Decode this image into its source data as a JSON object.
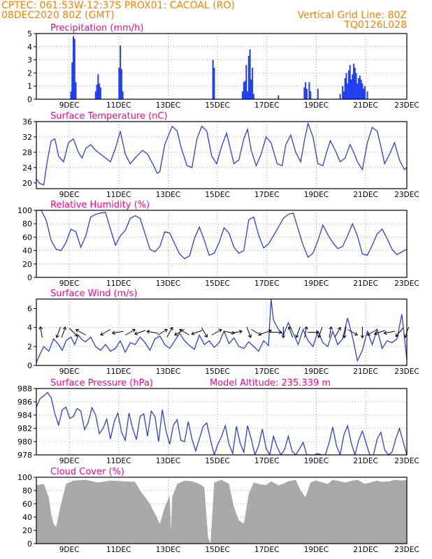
{
  "header": {
    "left_line1": "CPTEC:   061:53W-12:37S   PROX01: CACOAL (RO)",
    "left_line2": "08DEC2020 80Z (GMT)",
    "right_line2": "Vertical Grid Line: 80Z",
    "right_line3": "TQ0126L028",
    "color": "#ff7f00"
  },
  "colors": {
    "title": "#ff0090",
    "line": "#2a3fdc",
    "bar": "#1f3ff0",
    "cloud": "#a9a9a9",
    "arrow": "#000000"
  },
  "x_tick_labels": [
    "9DEC",
    "11DEC",
    "13DEC",
    "15DEC",
    "17DEC",
    "19DEC",
    "21DEC",
    "23DEC"
  ],
  "model_altitude": "Model Altitude: 235.339 m",
  "chart_data": [
    {
      "id": "precip",
      "type": "bar",
      "title": "Precipitation (mm/h)",
      "ylim": [
        0,
        5
      ],
      "yticks": [
        "0",
        "1",
        "2",
        "3",
        "4",
        "5"
      ],
      "x_range_days": [
        8.0,
        23.0
      ],
      "x": [
        9.4,
        9.45,
        9.5,
        9.55,
        9.6,
        10.4,
        10.45,
        10.5,
        10.55,
        10.6,
        11.35,
        11.4,
        11.45,
        11.5,
        15.15,
        15.2,
        16.35,
        16.4,
        16.45,
        16.5,
        16.55,
        16.6,
        16.65,
        16.7,
        16.75,
        16.8,
        17.8,
        18.85,
        18.9,
        18.95,
        19.05,
        19.1,
        19.4,
        20.3,
        20.4,
        20.45,
        20.5,
        20.55,
        20.6,
        20.65,
        20.7,
        20.75,
        20.8,
        20.85,
        20.9,
        20.95,
        21.0,
        21.05,
        21.1,
        21.15,
        21.2,
        21.25,
        21.3,
        21.4
      ],
      "values": [
        0.6,
        2.8,
        4.8,
        4.6,
        1.3,
        0.6,
        1.1,
        1.9,
        1.2,
        0.9,
        2.4,
        4.1,
        2.3,
        0.6,
        3.0,
        2.4,
        0.6,
        1.3,
        1.4,
        2.6,
        0.6,
        3.3,
        3.8,
        1.5,
        2.4,
        0.4,
        0.3,
        0.9,
        1.3,
        0.8,
        1.3,
        0.6,
        0.8,
        0.4,
        1.0,
        0.6,
        1.6,
        2.0,
        1.2,
        2.2,
        2.6,
        1.5,
        1.9,
        2.7,
        2.4,
        2.0,
        1.2,
        1.6,
        1.8,
        1.5,
        1.2,
        0.8,
        1.0,
        0.6
      ]
    },
    {
      "id": "temp",
      "type": "line",
      "title": "Surface Temperature (nC)",
      "ylim": [
        18.5,
        36
      ],
      "yticks": [
        "20",
        "24",
        "28",
        "32",
        "36"
      ],
      "x_range_days": [
        8.0,
        23.0
      ],
      "x": [
        8.0,
        8.15,
        8.3,
        8.45,
        8.6,
        8.75,
        8.9,
        9.1,
        9.3,
        9.5,
        9.7,
        9.85,
        10.0,
        10.2,
        10.4,
        10.6,
        10.8,
        11.0,
        11.2,
        11.4,
        11.6,
        11.8,
        12.0,
        12.3,
        12.5,
        12.75,
        12.9,
        13.0,
        13.2,
        13.5,
        13.7,
        13.85,
        14.1,
        14.3,
        14.5,
        14.7,
        14.9,
        15.1,
        15.3,
        15.5,
        15.7,
        15.85,
        16.0,
        16.2,
        16.4,
        16.55,
        16.7,
        16.9,
        17.1,
        17.3,
        17.5,
        17.75,
        17.95,
        18.1,
        18.3,
        18.5,
        18.7,
        18.85,
        19.0,
        19.2,
        19.4,
        19.6,
        19.75,
        19.9,
        20.1,
        20.3,
        20.5,
        20.7,
        20.85,
        21.0,
        21.2,
        21.4,
        21.6,
        21.8,
        21.95,
        22.1,
        22.3,
        22.5,
        22.7,
        22.9,
        23.0
      ],
      "values": [
        21.0,
        19.8,
        19.5,
        26.0,
        31.0,
        31.5,
        27.0,
        25.5,
        30.5,
        31.5,
        28.0,
        26.5,
        29.0,
        30.0,
        28.5,
        27.5,
        26.5,
        25.5,
        29.0,
        33.5,
        27.5,
        25.0,
        26.5,
        28.5,
        27.5,
        24.5,
        22.5,
        23.0,
        30.0,
        34.8,
        33.5,
        29.5,
        24.5,
        24.0,
        31.5,
        34.8,
        33.5,
        27.0,
        25.0,
        29.5,
        33.0,
        29.0,
        25.0,
        26.0,
        31.5,
        34.0,
        28.5,
        24.5,
        27.5,
        32.0,
        30.5,
        25.0,
        24.5,
        30.0,
        32.5,
        28.0,
        25.5,
        31.0,
        35.5,
        32.0,
        25.0,
        24.5,
        28.0,
        31.0,
        28.5,
        25.5,
        26.5,
        30.0,
        28.0,
        25.5,
        23.5,
        30.5,
        34.5,
        33.5,
        29.5,
        25.0,
        27.5,
        30.5,
        26.0,
        23.5,
        24.0
      ]
    },
    {
      "id": "rh",
      "type": "line",
      "title": "Relative Humidity (%)",
      "ylim": [
        0,
        100
      ],
      "yticks": [
        "0",
        "20",
        "40",
        "60",
        "80",
        "100"
      ],
      "x_range_days": [
        8.0,
        23.0
      ],
      "x": [
        8.0,
        8.2,
        8.4,
        8.6,
        8.8,
        9.0,
        9.2,
        9.4,
        9.6,
        9.8,
        10.0,
        10.2,
        10.4,
        10.6,
        10.8,
        11.0,
        11.2,
        11.4,
        11.6,
        11.8,
        12.0,
        12.2,
        12.4,
        12.6,
        12.8,
        13.0,
        13.2,
        13.4,
        13.6,
        13.8,
        14.0,
        14.2,
        14.4,
        14.6,
        14.8,
        15.0,
        15.2,
        15.4,
        15.6,
        15.8,
        16.0,
        16.2,
        16.4,
        16.6,
        16.8,
        17.0,
        17.2,
        17.4,
        17.6,
        17.8,
        18.0,
        18.2,
        18.4,
        18.6,
        18.8,
        19.0,
        19.2,
        19.4,
        19.6,
        19.8,
        20.0,
        20.2,
        20.4,
        20.6,
        20.8,
        21.0,
        21.2,
        21.4,
        21.6,
        21.8,
        22.0,
        22.2,
        22.4,
        22.6,
        22.8,
        23.0
      ],
      "values": [
        100,
        100,
        85,
        55,
        42,
        40,
        52,
        72,
        68,
        45,
        62,
        90,
        94,
        96,
        97,
        72,
        48,
        62,
        70,
        88,
        92,
        88,
        65,
        42,
        38,
        46,
        68,
        66,
        50,
        35,
        28,
        32,
        58,
        75,
        55,
        33,
        36,
        52,
        74,
        66,
        45,
        36,
        40,
        86,
        90,
        63,
        44,
        50,
        62,
        75,
        88,
        94,
        96,
        72,
        48,
        30,
        36,
        55,
        78,
        64,
        52,
        43,
        46,
        62,
        80,
        62,
        35,
        33,
        48,
        65,
        72,
        58,
        42,
        34,
        38,
        42
      ]
    },
    {
      "id": "wind",
      "type": "line",
      "title": "Surface Wind (m/s)",
      "ylim": [
        0,
        7
      ],
      "yticks": [
        "0",
        "2",
        "4",
        "6"
      ],
      "x_range_days": [
        8.0,
        23.0
      ],
      "x": [
        8.0,
        8.15,
        8.3,
        8.5,
        8.7,
        8.9,
        9.05,
        9.2,
        9.4,
        9.55,
        9.7,
        9.85,
        10.0,
        10.2,
        10.4,
        10.6,
        10.8,
        11.0,
        11.2,
        11.4,
        11.6,
        11.8,
        12.0,
        12.2,
        12.4,
        12.6,
        12.8,
        13.0,
        13.2,
        13.4,
        13.6,
        13.8,
        14.0,
        14.2,
        14.4,
        14.6,
        14.8,
        15.0,
        15.2,
        15.4,
        15.6,
        15.8,
        16.0,
        16.2,
        16.4,
        16.6,
        16.8,
        17.0,
        17.2,
        17.4,
        17.5,
        17.6,
        17.8,
        18.0,
        18.2,
        18.4,
        18.6,
        18.8,
        19.0,
        19.2,
        19.4,
        19.6,
        19.8,
        20.0,
        20.2,
        20.4,
        20.6,
        20.8,
        21.0,
        21.2,
        21.4,
        21.6,
        21.8,
        22.0,
        22.2,
        22.4,
        22.6,
        22.8,
        23.0
      ],
      "values": [
        0.3,
        1.2,
        2.0,
        1.5,
        2.8,
        2.2,
        1.6,
        2.6,
        3.0,
        2.2,
        3.2,
        2.7,
        2.5,
        3.0,
        2.0,
        1.6,
        2.2,
        1.5,
        1.8,
        2.6,
        1.4,
        2.4,
        2.2,
        3.0,
        2.4,
        1.6,
        2.8,
        3.1,
        2.2,
        1.8,
        2.6,
        3.4,
        2.6,
        2.1,
        1.7,
        3.2,
        2.2,
        2.6,
        1.9,
        2.4,
        3.6,
        2.3,
        2.9,
        2.0,
        1.8,
        2.5,
        2.0,
        1.5,
        2.6,
        2.1,
        7.0,
        4.8,
        3.8,
        3.2,
        4.5,
        3.4,
        2.2,
        3.8,
        2.6,
        2.0,
        3.6,
        2.4,
        2.0,
        3.6,
        2.2,
        2.8,
        5.0,
        3.0,
        0.5,
        1.6,
        3.6,
        2.2,
        3.8,
        1.8,
        2.6,
        2.4,
        2.8,
        5.4,
        0.6
      ]
    },
    {
      "id": "pressure",
      "type": "line",
      "title": "Surface Pressure (hPa)",
      "ylim": [
        978,
        988
      ],
      "yticks": [
        "978",
        "980",
        "982",
        "984",
        "986",
        "988"
      ],
      "x_range_days": [
        8.0,
        23.0
      ],
      "x": [
        8.0,
        8.15,
        8.3,
        8.45,
        8.6,
        8.75,
        8.9,
        9.05,
        9.2,
        9.35,
        9.5,
        9.65,
        9.8,
        9.95,
        10.1,
        10.25,
        10.4,
        10.55,
        10.7,
        10.85,
        11.0,
        11.15,
        11.3,
        11.45,
        11.6,
        11.75,
        11.9,
        12.05,
        12.2,
        12.35,
        12.5,
        12.65,
        12.8,
        12.95,
        13.1,
        13.25,
        13.4,
        13.55,
        13.7,
        13.85,
        14.0,
        14.15,
        14.3,
        14.45,
        14.6,
        14.75,
        14.9,
        15.05,
        15.2,
        15.35,
        15.5,
        15.65,
        15.8,
        15.95,
        16.1,
        16.25,
        16.4,
        16.55,
        16.7,
        16.85,
        17.0,
        17.15,
        17.3,
        17.45,
        17.6,
        17.75,
        17.9,
        18.05,
        18.2,
        18.35,
        18.5,
        18.65,
        18.8,
        18.95,
        19.1,
        19.25,
        19.4,
        19.55,
        19.7,
        19.85,
        20.0,
        20.15,
        20.3,
        20.45,
        20.6,
        20.75,
        20.9,
        21.05,
        21.2,
        21.35,
        21.5,
        21.65,
        21.8,
        21.95,
        22.1,
        22.25,
        22.4,
        22.55,
        22.7,
        22.85,
        23.0
      ],
      "values": [
        985.2,
        986.5,
        986.9,
        987.4,
        986.6,
        984.2,
        982.5,
        984.8,
        985.2,
        983.5,
        983.8,
        985.0,
        984.6,
        981.8,
        982.9,
        985.1,
        984.0,
        981.2,
        982.0,
        983.4,
        980.4,
        983.0,
        984.3,
        981.4,
        980.2,
        984.3,
        982.0,
        980.3,
        983.8,
        984.2,
        980.8,
        984.6,
        983.8,
        980.0,
        984.8,
        981.6,
        979.6,
        982.5,
        983.3,
        980.2,
        980.0,
        983.0,
        980.4,
        978.6,
        980.4,
        982.3,
        982.8,
        980.3,
        978.0,
        979.6,
        980.8,
        982.4,
        979.6,
        978.2,
        982.3,
        979.8,
        978.4,
        982.4,
        980.4,
        977.8,
        979.4,
        981.9,
        979.0,
        977.8,
        980.8,
        979.2,
        977.7,
        978.8,
        980.8,
        978.6,
        977.3,
        978.9,
        979.9,
        977.5,
        976.8,
        977.6,
        978.2,
        977.6,
        976.2,
        979.8,
        982.2,
        979.4,
        977.2,
        981.0,
        982.4,
        979.8,
        977.6,
        980.2,
        981.6,
        979.8,
        978.0,
        977.6,
        980.4,
        981.4,
        978.8,
        978.0,
        978.4,
        980.4,
        982.0,
        980.0,
        978.0
      ]
    },
    {
      "id": "cloud",
      "type": "bar",
      "title": "Cloud Cover (%)",
      "ylim": [
        0,
        100
      ],
      "yticks": [
        "0",
        "20",
        "40",
        "60",
        "80",
        "100"
      ],
      "x_range_days": [
        8.0,
        23.0
      ],
      "x": [
        8.0,
        8.3,
        8.5,
        8.6,
        8.7,
        8.8,
        9.0,
        9.2,
        9.5,
        10.0,
        10.5,
        11.0,
        11.5,
        12.0,
        12.2,
        12.4,
        12.6,
        12.8,
        13.0,
        13.2,
        13.4,
        13.45,
        13.5,
        13.7,
        14.0,
        14.3,
        14.6,
        14.8,
        14.95,
        15.05,
        15.2,
        15.5,
        15.8,
        16.0,
        16.2,
        16.4,
        16.6,
        16.8,
        17.0,
        17.3,
        17.5,
        17.6,
        17.8,
        18.0,
        18.2,
        18.5,
        18.7,
        18.9,
        19.1,
        19.3,
        19.5,
        19.8,
        20.0,
        20.3,
        20.5,
        20.8,
        21.0,
        21.3,
        21.5,
        21.8,
        22.0,
        22.3,
        22.5,
        22.8,
        23.0
      ],
      "values": [
        88,
        90,
        70,
        45,
        30,
        25,
        60,
        90,
        95,
        96,
        92,
        95,
        94,
        93,
        80,
        70,
        60,
        45,
        30,
        55,
        72,
        20,
        70,
        90,
        95,
        94,
        90,
        85,
        10,
        0,
        92,
        96,
        90,
        55,
        35,
        30,
        75,
        92,
        90,
        88,
        94,
        92,
        88,
        90,
        94,
        96,
        80,
        70,
        92,
        95,
        93,
        90,
        96,
        94,
        92,
        95,
        96,
        90,
        92,
        95,
        93,
        94,
        96,
        95,
        96
      ]
    }
  ],
  "wind_arrows": {
    "x": [
      8.2,
      8.9,
      9.1,
      9.5,
      9.8,
      10.8,
      11.3,
      11.8,
      12.2,
      12.7,
      13.1,
      13.4,
      13.8,
      14.0,
      14.5,
      14.8,
      15.3,
      15.8,
      16.1,
      16.6,
      16.9,
      17.3,
      17.7,
      18.0,
      18.3,
      18.6,
      18.9,
      19.2,
      19.5,
      19.9,
      20.2,
      20.5,
      20.8,
      21.2,
      21.6,
      21.9,
      22.3,
      22.7,
      23.0
    ],
    "direction_deg": [
      350,
      200,
      20,
      135,
      300,
      240,
      260,
      60,
      250,
      280,
      60,
      30,
      240,
      300,
      250,
      150,
      60,
      100,
      80,
      160,
      120,
      70,
      90,
      180,
      340,
      200,
      10,
      90,
      200,
      10,
      30,
      190,
      120,
      180,
      240,
      250,
      260,
      220,
      200
    ]
  }
}
